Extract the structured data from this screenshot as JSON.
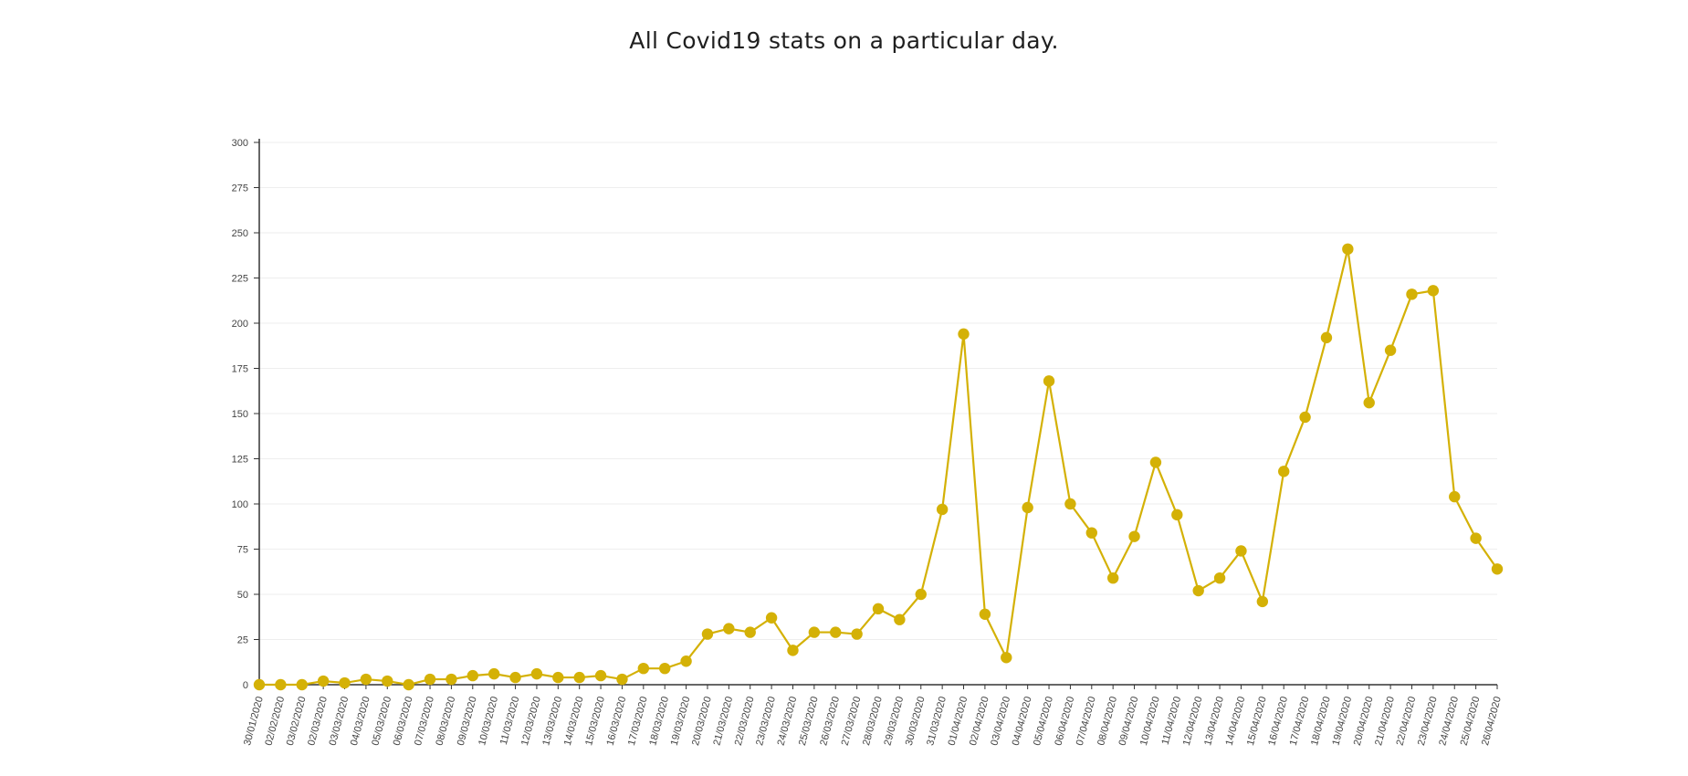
{
  "page_title": "All Covid19 stats on a particular day.",
  "chart_data": {
    "type": "line",
    "title": "",
    "xlabel": "",
    "ylabel": "",
    "ylim": [
      0,
      300
    ],
    "yticks": [
      0,
      25,
      50,
      75,
      100,
      125,
      150,
      175,
      200,
      225,
      250,
      275,
      300
    ],
    "grid": true,
    "color": "#d4b106",
    "categories": [
      "30/01/2020",
      "02/02/2020",
      "03/02/2020",
      "02/03/2020",
      "03/03/2020",
      "04/03/2020",
      "05/03/2020",
      "06/03/2020",
      "07/03/2020",
      "08/03/2020",
      "09/03/2020",
      "10/03/2020",
      "11/03/2020",
      "12/03/2020",
      "13/03/2020",
      "14/03/2020",
      "15/03/2020",
      "16/03/2020",
      "17/03/2020",
      "18/03/2020",
      "19/03/2020",
      "20/03/2020",
      "21/03/2020",
      "22/03/2020",
      "23/03/2020",
      "24/03/2020",
      "25/03/2020",
      "26/03/2020",
      "27/03/2020",
      "28/03/2020",
      "29/03/2020",
      "30/03/2020",
      "31/03/2020",
      "01/04/2020",
      "02/04/2020",
      "03/04/2020",
      "04/04/2020",
      "05/04/2020",
      "06/04/2020",
      "07/04/2020",
      "08/04/2020",
      "09/04/2020",
      "10/04/2020",
      "11/04/2020",
      "12/04/2020",
      "13/04/2020",
      "14/04/2020",
      "15/04/2020",
      "16/04/2020",
      "17/04/2020",
      "18/04/2020",
      "19/04/2020",
      "20/04/2020",
      "21/04/2020",
      "22/04/2020",
      "23/04/2020",
      "24/04/2020",
      "25/04/2020",
      "26/04/2020"
    ],
    "series": [
      {
        "values": [
          0,
          0,
          0,
          2,
          1,
          3,
          2,
          0,
          3,
          3,
          5,
          6,
          4,
          6,
          4,
          4,
          5,
          3,
          9,
          9,
          13,
          28,
          31,
          29,
          37,
          19,
          29,
          29,
          28,
          42,
          36,
          50,
          97,
          194,
          39,
          15,
          98,
          168,
          100,
          84,
          59,
          82,
          123,
          94,
          52,
          59,
          74,
          46,
          118,
          148,
          192,
          241,
          156,
          185,
          216,
          218,
          104,
          81,
          64
        ]
      }
    ]
  }
}
